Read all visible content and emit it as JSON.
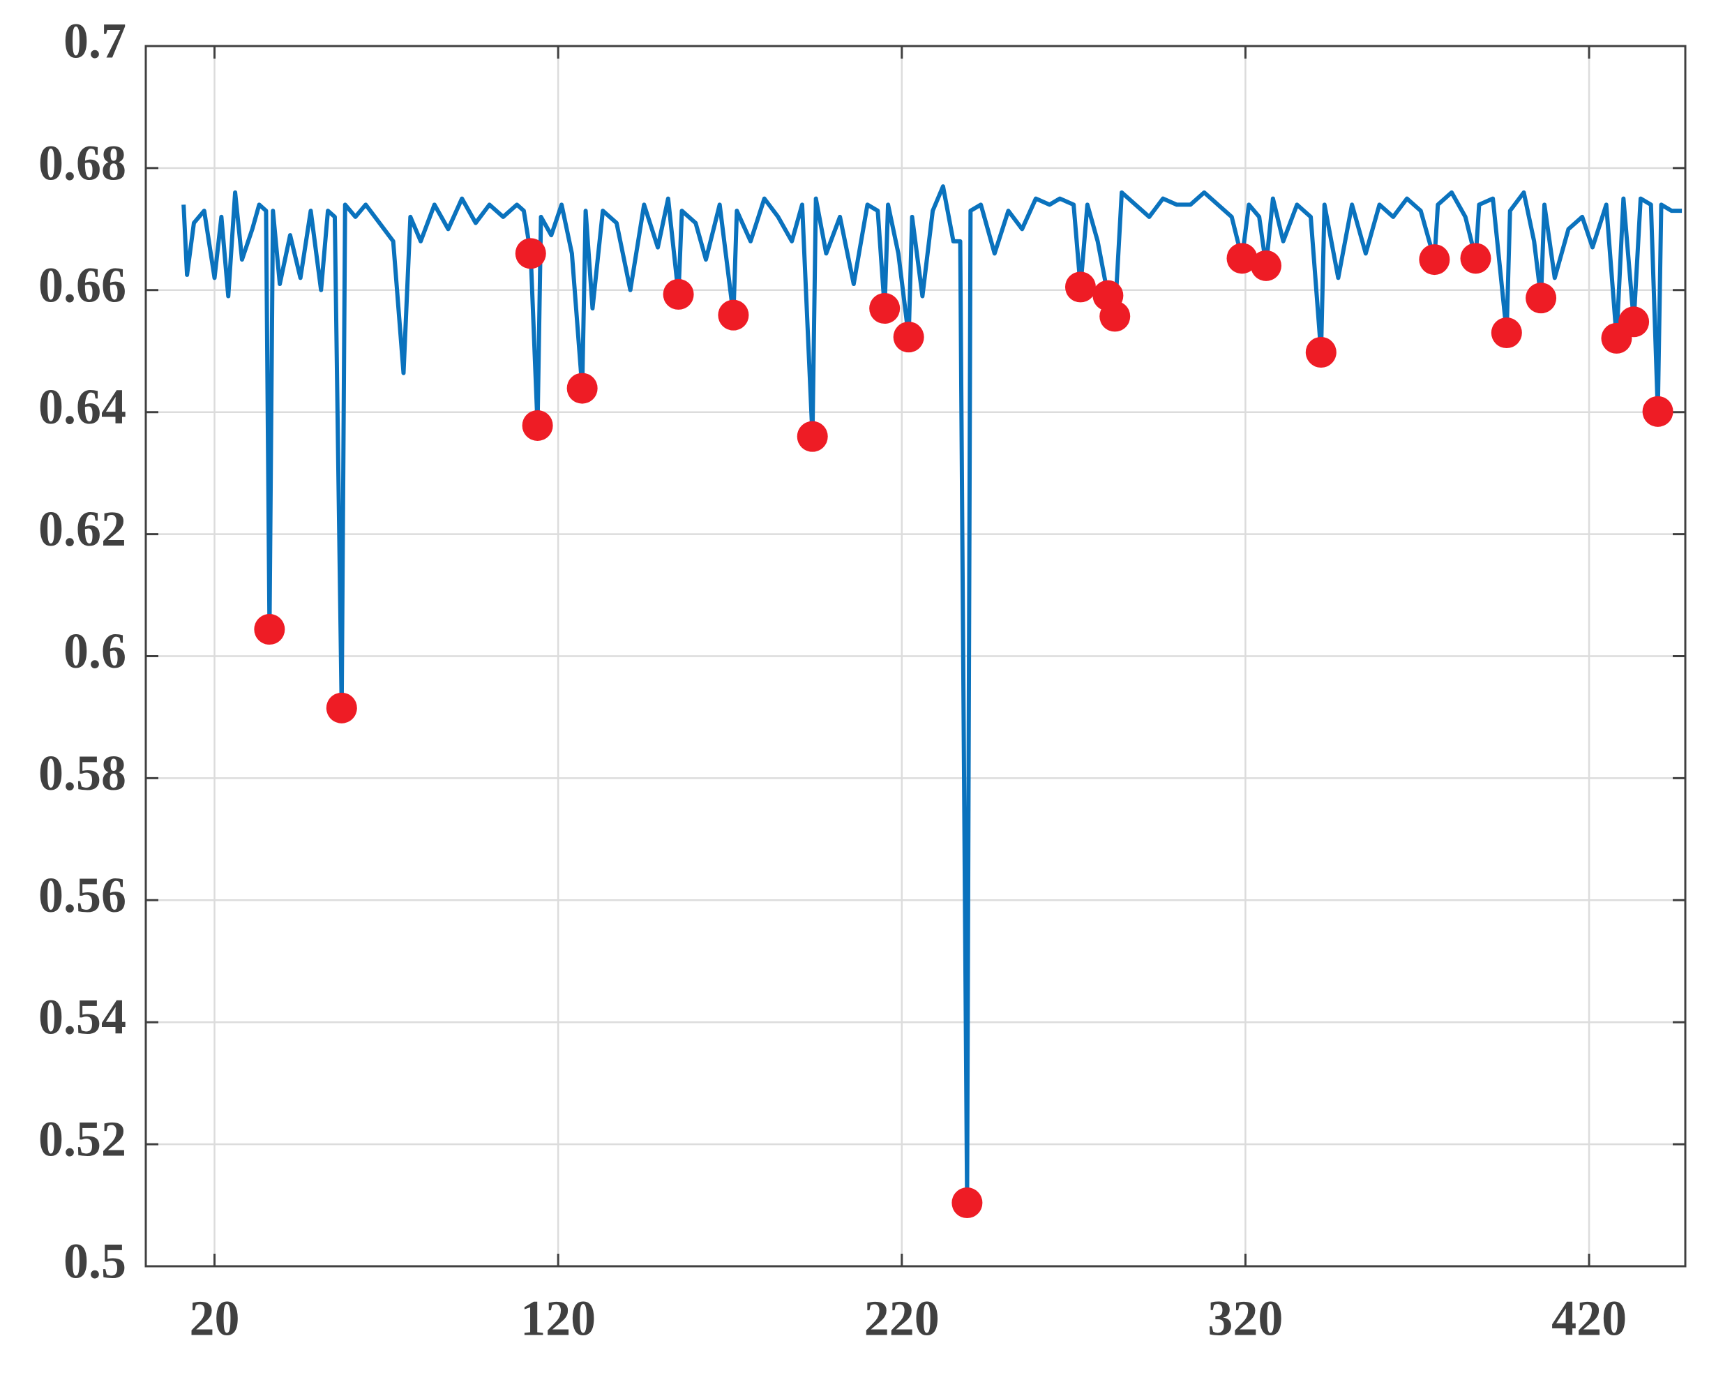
{
  "chart_data": {
    "type": "line",
    "xlim": [
      0,
      448
    ],
    "xticks": [
      20,
      120,
      220,
      320,
      420
    ],
    "ylim": [
      0.5,
      0.7
    ],
    "yticks": [
      0.5,
      0.52,
      0.54,
      0.56,
      0.58,
      0.6,
      0.62,
      0.64,
      0.66,
      0.68,
      0.7
    ],
    "grid": true,
    "series": [
      {
        "type": "line",
        "color": "#0a72bd",
        "x": [
          11,
          12,
          14,
          17,
          20,
          22,
          24,
          26,
          28,
          31,
          33,
          35,
          36,
          37,
          39,
          42,
          45,
          48,
          51,
          53,
          55,
          57,
          58,
          61,
          64,
          68,
          72,
          75,
          77,
          80,
          84,
          88,
          92,
          96,
          100,
          104,
          108,
          110,
          112,
          114,
          115,
          118,
          121,
          124,
          127,
          128,
          130,
          133,
          137,
          141,
          145,
          149,
          152,
          155,
          156,
          160,
          163,
          167,
          171,
          172,
          176,
          180,
          184,
          188,
          191,
          194,
          195,
          198,
          202,
          206,
          210,
          213,
          215,
          216,
          219,
          222,
          223,
          226,
          229,
          232,
          235,
          237,
          239,
          240,
          243,
          247,
          251,
          255,
          259,
          263,
          266,
          270,
          272,
          274,
          277,
          280,
          282,
          284,
          288,
          292,
          296,
          300,
          304,
          308,
          312,
          316,
          319,
          321,
          324,
          326,
          328,
          331,
          335,
          339,
          342,
          343,
          347,
          351,
          355,
          359,
          363,
          367,
          371,
          375,
          376,
          380,
          384,
          387,
          388,
          392,
          396,
          397,
          401,
          404,
          406,
          407,
          410,
          414,
          418,
          421,
          425,
          428,
          430,
          433,
          435,
          438,
          440,
          441,
          444,
          447
        ],
        "values": [
          0.674,
          0.6625,
          0.671,
          0.673,
          0.662,
          0.672,
          0.659,
          0.676,
          0.665,
          0.67,
          0.674,
          0.673,
          0.6044,
          0.673,
          0.661,
          0.669,
          0.662,
          0.673,
          0.66,
          0.673,
          0.672,
          0.5915,
          0.674,
          0.672,
          0.674,
          0.671,
          0.668,
          0.6464,
          0.672,
          0.668,
          0.674,
          0.67,
          0.675,
          0.671,
          0.674,
          0.672,
          0.674,
          0.673,
          0.666,
          0.6378,
          0.672,
          0.669,
          0.674,
          0.666,
          0.6439,
          0.673,
          0.657,
          0.673,
          0.671,
          0.66,
          0.674,
          0.667,
          0.675,
          0.6593,
          0.673,
          0.671,
          0.665,
          0.674,
          0.6559,
          0.673,
          0.668,
          0.675,
          0.672,
          0.668,
          0.674,
          0.636,
          0.675,
          0.666,
          0.672,
          0.661,
          0.674,
          0.673,
          0.657,
          0.674,
          0.666,
          0.6523,
          0.672,
          0.659,
          0.673,
          0.677,
          0.668,
          0.668,
          0.5104,
          0.673,
          0.674,
          0.666,
          0.673,
          0.67,
          0.675,
          0.674,
          0.675,
          0.674,
          0.6605,
          0.674,
          0.668,
          0.6591,
          0.6557,
          0.676,
          0.674,
          0.672,
          0.675,
          0.674,
          0.674,
          0.676,
          0.674,
          0.672,
          0.6652,
          0.674,
          0.672,
          0.664,
          0.675,
          0.668,
          0.674,
          0.672,
          0.6498,
          0.674,
          0.662,
          0.674,
          0.666,
          0.674,
          0.672,
          0.675,
          0.673,
          0.665,
          0.674,
          0.676,
          0.672,
          0.6652,
          0.674,
          0.675,
          0.653,
          0.673,
          0.676,
          0.668,
          0.6587,
          0.674,
          0.662,
          0.67,
          0.672,
          0.667,
          0.674,
          0.6521,
          0.675,
          0.6548,
          0.675,
          0.674,
          0.6401,
          0.674,
          0.673,
          0.673
        ]
      },
      {
        "type": "scatter",
        "color": "#ee1c25",
        "x": [
          36,
          57,
          112,
          114,
          127,
          155,
          171,
          194,
          215,
          222,
          239,
          272,
          280,
          282,
          319,
          326,
          342,
          375,
          387,
          396,
          406,
          428,
          433,
          440
        ],
        "values": [
          0.6044,
          0.5915,
          0.666,
          0.6378,
          0.6439,
          0.6593,
          0.6559,
          0.636,
          0.657,
          0.6523,
          0.5104,
          0.6605,
          0.6591,
          0.6557,
          0.6652,
          0.664,
          0.6498,
          0.665,
          0.6652,
          0.653,
          0.6587,
          0.6521,
          0.6548,
          0.6401
        ]
      }
    ]
  }
}
